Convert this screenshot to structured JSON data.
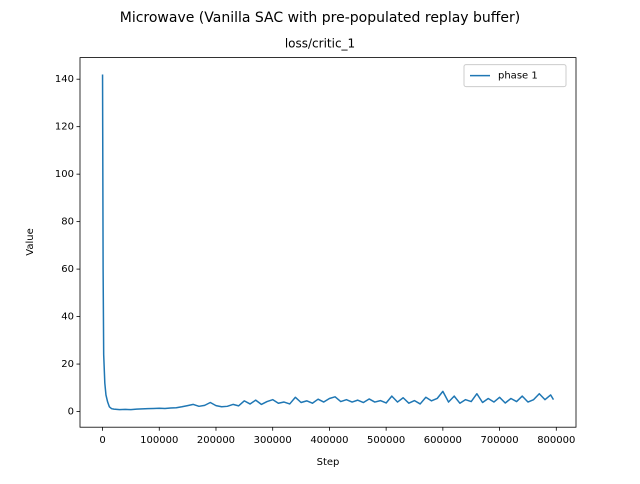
{
  "chart_data": {
    "type": "line",
    "title": "Microwave (Vanilla SAC with pre-populated replay buffer)",
    "subtitle": "loss/critic_1",
    "x_label": "Step",
    "y_label": "Value",
    "x": [
      0,
      1000,
      2000,
      4000,
      6000,
      9000,
      12000,
      16000,
      20000,
      30000,
      40000,
      50000,
      60000,
      70000,
      80000,
      90000,
      100000,
      110000,
      120000,
      130000,
      140000,
      150000,
      160000,
      170000,
      180000,
      190000,
      200000,
      210000,
      220000,
      230000,
      240000,
      250000,
      260000,
      270000,
      280000,
      290000,
      300000,
      310000,
      320000,
      330000,
      340000,
      350000,
      360000,
      370000,
      380000,
      390000,
      400000,
      410000,
      420000,
      430000,
      440000,
      450000,
      460000,
      470000,
      480000,
      490000,
      500000,
      510000,
      520000,
      530000,
      540000,
      550000,
      560000,
      570000,
      580000,
      590000,
      600000,
      610000,
      620000,
      630000,
      640000,
      650000,
      660000,
      670000,
      680000,
      690000,
      700000,
      710000,
      720000,
      730000,
      740000,
      750000,
      760000,
      770000,
      780000,
      790000,
      795000
    ],
    "series": [
      {
        "name": "phase 1",
        "color": "#1f77b4",
        "values": [
          142,
          60,
          24,
          12,
          7,
          4,
          2,
          1.2,
          1.0,
          0.8,
          0.9,
          0.8,
          1.0,
          1.1,
          1.2,
          1.3,
          1.4,
          1.3,
          1.5,
          1.6,
          2.0,
          2.5,
          3.0,
          2.2,
          2.6,
          3.8,
          2.5,
          2.0,
          2.2,
          3.0,
          2.4,
          4.5,
          3.2,
          4.8,
          3.0,
          4.2,
          5.0,
          3.5,
          4.0,
          3.2,
          6.0,
          3.8,
          4.5,
          3.5,
          5.2,
          4.0,
          5.5,
          6.2,
          4.2,
          5.0,
          4.0,
          4.8,
          3.8,
          5.3,
          4.0,
          4.6,
          3.6,
          6.5,
          4.0,
          5.8,
          3.5,
          4.6,
          3.2,
          6.0,
          4.5,
          5.5,
          8.5,
          4.0,
          6.5,
          3.5,
          5.0,
          4.2,
          7.5,
          3.8,
          5.5,
          4.0,
          6.0,
          3.6,
          5.5,
          4.2,
          6.5,
          4.0,
          5.0,
          7.5,
          5.0,
          7.0,
          5.0
        ]
      }
    ],
    "xlim": [
      -39750,
      834750
    ],
    "ylim": [
      -6.6,
      149.1
    ],
    "xticks": [
      0,
      100000,
      200000,
      300000,
      400000,
      500000,
      600000,
      700000,
      800000
    ],
    "yticks": [
      0,
      20,
      40,
      60,
      80,
      100,
      120,
      140
    ],
    "grid": false,
    "legend": "upper right"
  }
}
